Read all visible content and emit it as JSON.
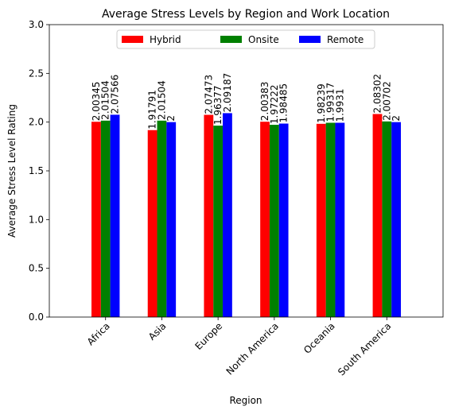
{
  "chart_data": {
    "type": "bar",
    "title": "Average Stress Levels by Region and Work Location",
    "xlabel": "Region",
    "ylabel": "Average Stress Level Rating",
    "ylim": [
      0,
      3.0
    ],
    "yticks": [
      "0.0",
      "0.5",
      "1.0",
      "1.5",
      "2.0",
      "2.5",
      "3.0"
    ],
    "categories": [
      "Africa",
      "Asia",
      "Europe",
      "North America",
      "Oceania",
      "South America"
    ],
    "legend_position": "top-center",
    "grid": false,
    "series": [
      {
        "name": "Hybrid",
        "color": "#ff0000",
        "values": [
          2.00345,
          1.91791,
          2.07473,
          2.00383,
          1.98239,
          2.08302
        ],
        "labels": [
          "2.00345",
          "1.91791",
          "2.07473",
          "2.00383",
          "1.98239",
          "2.08302"
        ]
      },
      {
        "name": "Onsite",
        "color": "#008000",
        "values": [
          2.01504,
          2.01504,
          1.96377,
          1.97222,
          1.99317,
          2.00702
        ],
        "labels": [
          "2.01504",
          "2.01504",
          "1.96377",
          "1.97222",
          "1.99317",
          "2.00702"
        ]
      },
      {
        "name": "Remote",
        "color": "#0000ff",
        "values": [
          2.07566,
          2,
          2.09187,
          1.98485,
          1.9931,
          2
        ],
        "labels": [
          "2.07566",
          "2",
          "2.09187",
          "1.98485",
          "1.9931",
          "2"
        ]
      }
    ]
  }
}
